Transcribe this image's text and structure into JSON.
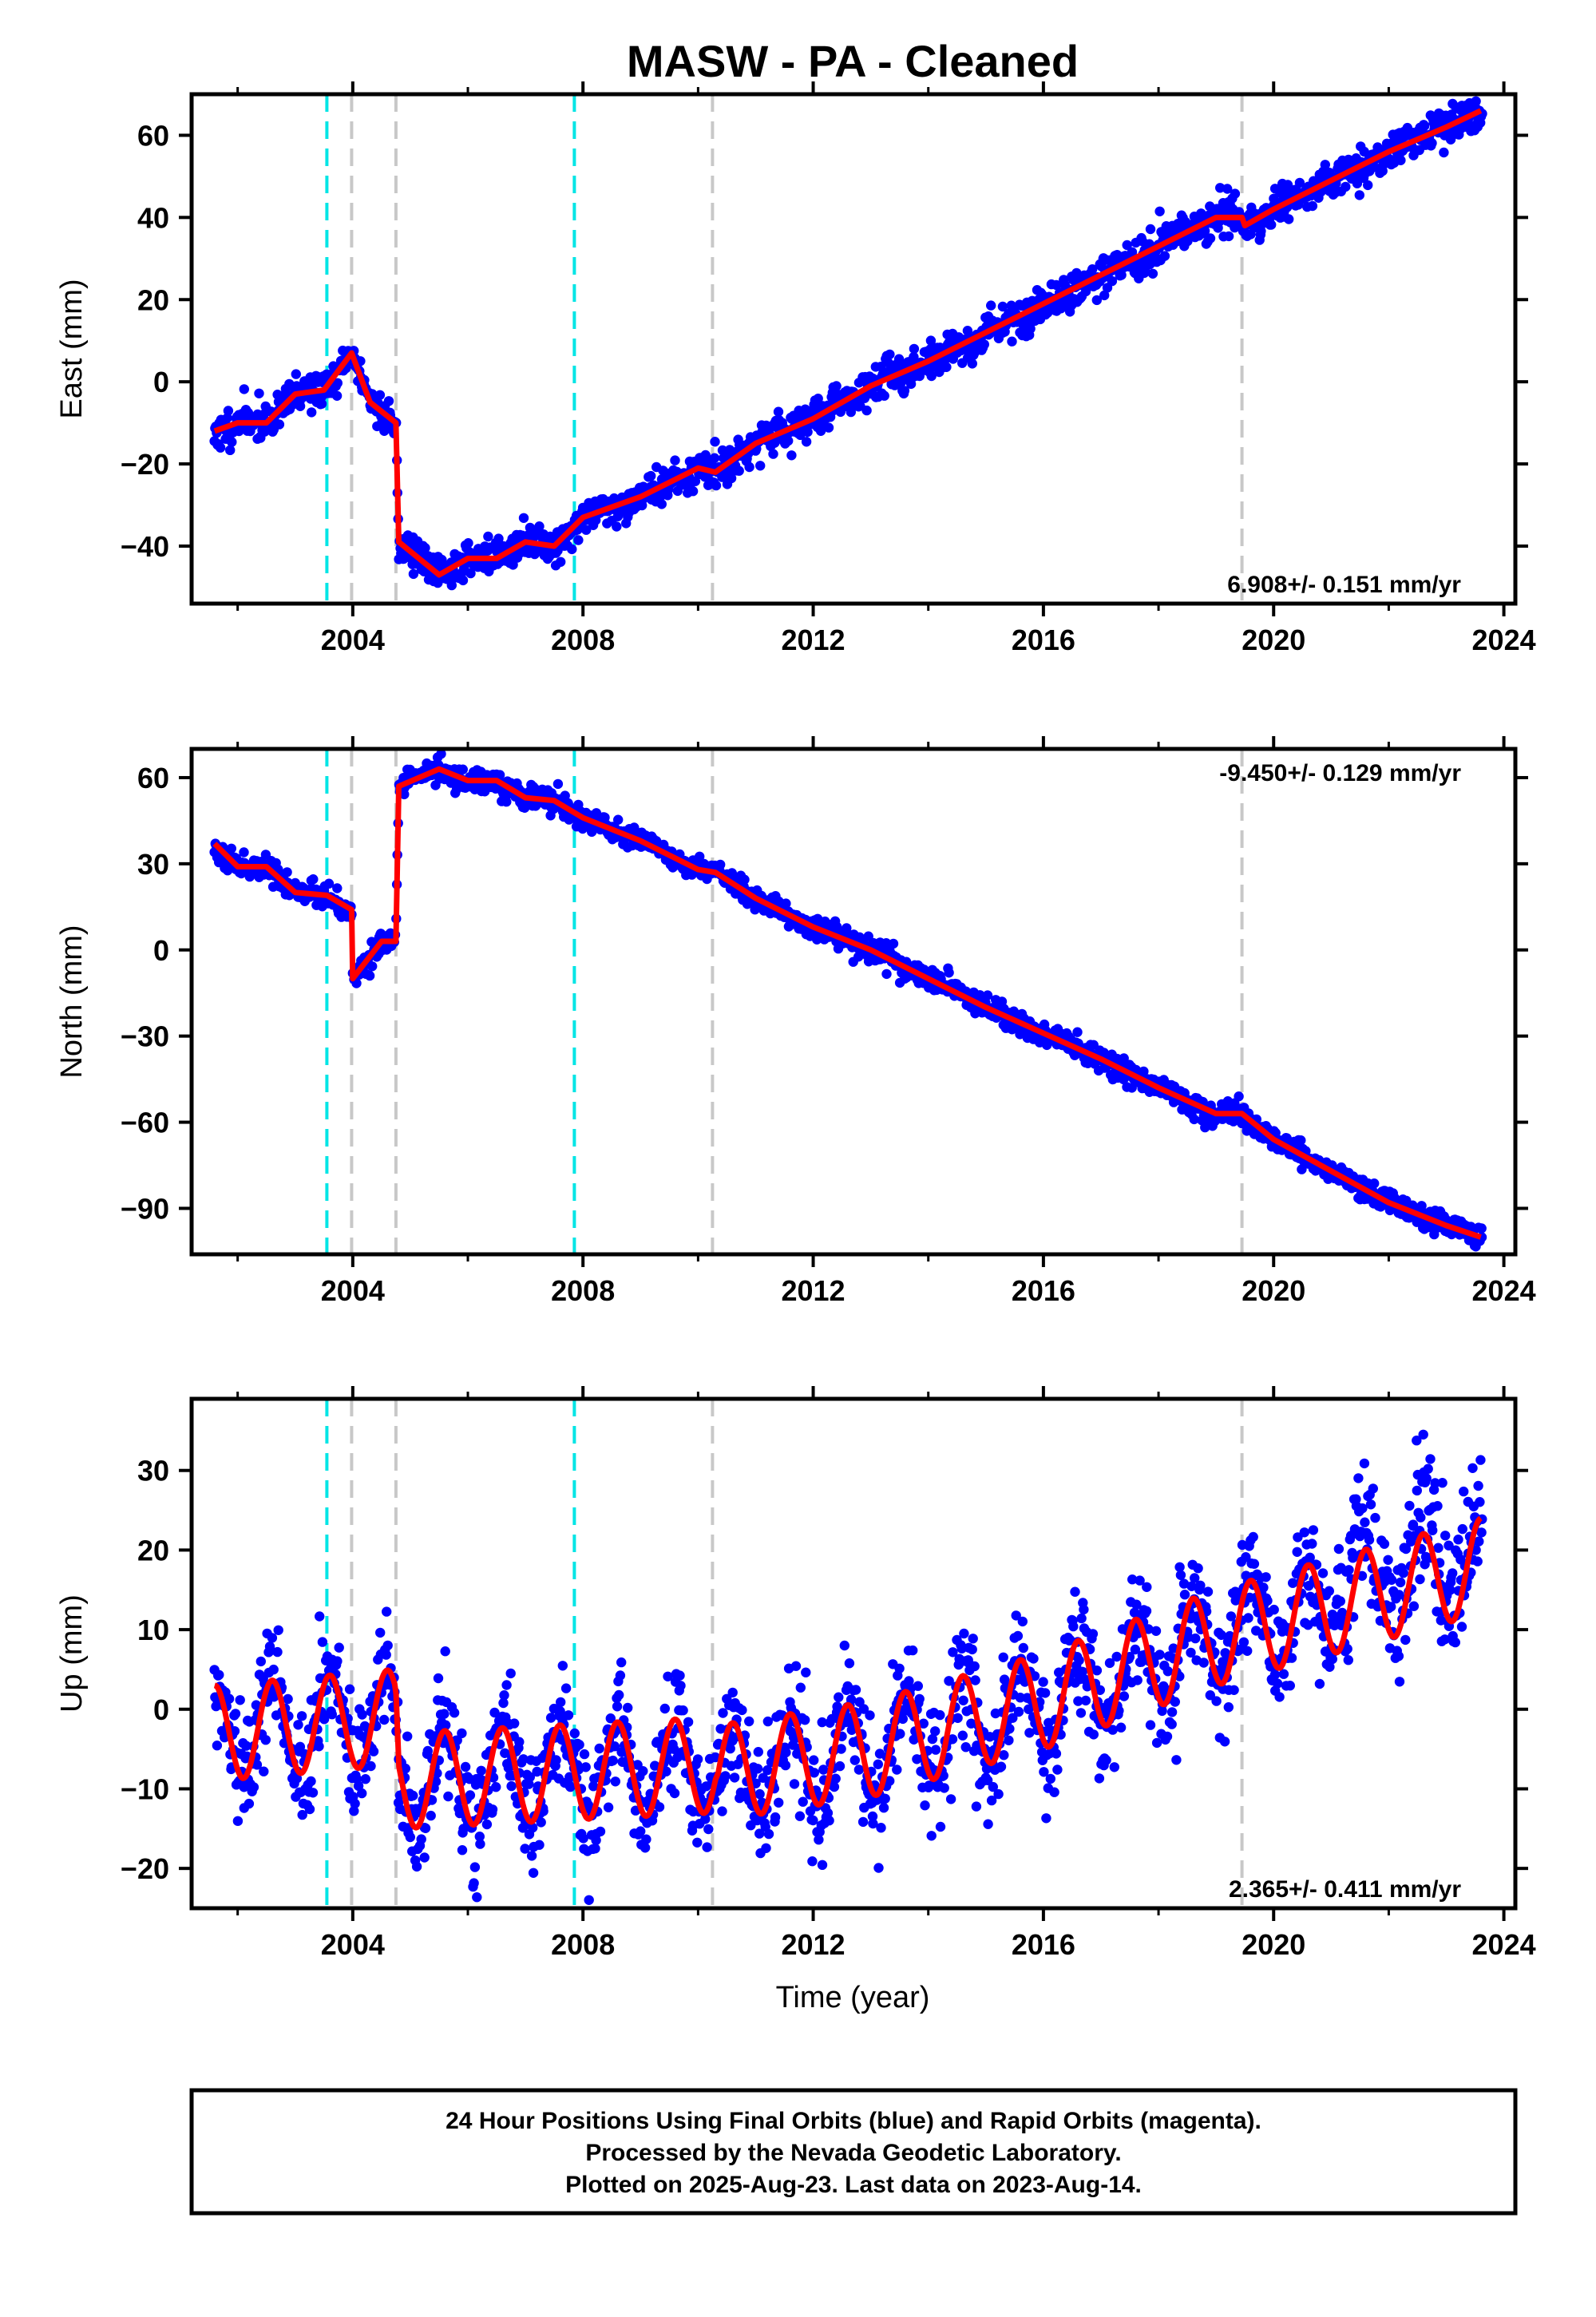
{
  "chart_data": {
    "type": "scatter",
    "title": "MASW  - PA - Cleaned",
    "xlabel": "Time (year)",
    "xlim": [
      2001.2,
      2024.2
    ],
    "x_ticks": [
      2004,
      2008,
      2012,
      2016,
      2020,
      2024
    ],
    "x_tick_labels": [
      "2004",
      "2008",
      "2012",
      "2016",
      "2020",
      "2024"
    ],
    "colors": {
      "points": "#0000ff",
      "model": "#ff0000",
      "vline_cyan": "#00e5e5",
      "vline_gray": "#c8c8c8"
    },
    "vlines_cyan": [
      2003.55,
      2007.85
    ],
    "vlines_gray": [
      2003.98,
      2004.75,
      2010.25,
      2019.45
    ],
    "panels": [
      {
        "name": "East",
        "ylabel": "East (mm)",
        "ylim": [
          -54,
          70
        ],
        "y_ticks": [
          -40,
          -20,
          0,
          20,
          40,
          60
        ],
        "y_tick_labels": [
          "−40",
          "−20",
          "0",
          "20",
          "40",
          "60"
        ],
        "rate_text": "6.908+/- 0.151 mm/yr",
        "rate_position": "bottom-right",
        "model": [
          [
            2001.6,
            -12
          ],
          [
            2002.0,
            -10
          ],
          [
            2002.5,
            -10
          ],
          [
            2003.0,
            -3
          ],
          [
            2003.5,
            -2
          ],
          [
            2003.98,
            7
          ],
          [
            2004.3,
            -5
          ],
          [
            2004.75,
            -10
          ],
          [
            2004.8,
            -39
          ],
          [
            2005.5,
            -47
          ],
          [
            2006.0,
            -43
          ],
          [
            2006.5,
            -43
          ],
          [
            2007.0,
            -39
          ],
          [
            2007.5,
            -40
          ],
          [
            2008.0,
            -33
          ],
          [
            2009.0,
            -28
          ],
          [
            2010.0,
            -21
          ],
          [
            2010.3,
            -22
          ],
          [
            2011.0,
            -15
          ],
          [
            2012.0,
            -9
          ],
          [
            2013.0,
            -1
          ],
          [
            2014.0,
            5
          ],
          [
            2015.0,
            12
          ],
          [
            2016.0,
            19
          ],
          [
            2017.0,
            26
          ],
          [
            2018.0,
            33
          ],
          [
            2019.0,
            40
          ],
          [
            2019.45,
            40
          ],
          [
            2019.5,
            38
          ],
          [
            2020.0,
            42
          ],
          [
            2021.0,
            49
          ],
          [
            2022.0,
            56
          ],
          [
            2023.0,
            62
          ],
          [
            2023.6,
            66
          ]
        ],
        "points_seed": 11,
        "points_noise": 2.2,
        "points_seasonal": 1.5
      },
      {
        "name": "North",
        "ylabel": "North (mm)",
        "ylim": [
          -106,
          70
        ],
        "y_ticks": [
          -90,
          -60,
          -30,
          0,
          30,
          60
        ],
        "y_tick_labels": [
          "−90",
          "−60",
          "−30",
          "0",
          "30",
          "60"
        ],
        "rate_text": "-9.450+/- 0.129 mm/yr",
        "rate_position": "top-right",
        "model": [
          [
            2001.6,
            37
          ],
          [
            2002.0,
            29
          ],
          [
            2002.5,
            29
          ],
          [
            2003.0,
            20
          ],
          [
            2003.55,
            19
          ],
          [
            2003.98,
            14
          ],
          [
            2004.0,
            -10
          ],
          [
            2004.5,
            3
          ],
          [
            2004.75,
            3
          ],
          [
            2004.8,
            57
          ],
          [
            2005.5,
            63
          ],
          [
            2006.0,
            59
          ],
          [
            2006.5,
            59
          ],
          [
            2007.0,
            53
          ],
          [
            2007.5,
            52
          ],
          [
            2008.0,
            46
          ],
          [
            2009.0,
            38
          ],
          [
            2010.0,
            28
          ],
          [
            2010.3,
            27
          ],
          [
            2011.0,
            18
          ],
          [
            2012.0,
            8
          ],
          [
            2013.0,
            0
          ],
          [
            2014.0,
            -10
          ],
          [
            2015.0,
            -20
          ],
          [
            2016.0,
            -29
          ],
          [
            2017.0,
            -38
          ],
          [
            2018.0,
            -48
          ],
          [
            2019.0,
            -57
          ],
          [
            2019.45,
            -57
          ],
          [
            2020.0,
            -66
          ],
          [
            2021.0,
            -77
          ],
          [
            2022.0,
            -88
          ],
          [
            2023.0,
            -96
          ],
          [
            2023.6,
            -100
          ]
        ],
        "points_seed": 23,
        "points_noise": 2.0,
        "points_seasonal": 1.6
      },
      {
        "name": "Up",
        "ylabel": "Up (mm)",
        "ylim": [
          -25,
          39
        ],
        "y_ticks": [
          -20,
          -10,
          0,
          10,
          20,
          30
        ],
        "y_tick_labels": [
          "−20",
          "−10",
          "0",
          "10",
          "20",
          "30"
        ],
        "rate_text": "2.365+/- 0.411 mm/yr",
        "rate_position": "bottom-right",
        "model_type": "seasonal",
        "model_amplitude": 6,
        "model_trend": [
          [
            2001.6,
            -3
          ],
          [
            2004.75,
            -1
          ],
          [
            2004.8,
            -9
          ],
          [
            2010.3,
            -7
          ],
          [
            2010.35,
            -8
          ],
          [
            2013.0,
            -5
          ],
          [
            2016.0,
            1
          ],
          [
            2019.0,
            9
          ],
          [
            2023.6,
            18
          ]
        ],
        "points_seed": 37,
        "points_noise": 3.6,
        "points_seasonal": 6
      }
    ],
    "footer": [
      "24 Hour Positions Using Final Orbits (blue) and Rapid Orbits (magenta).",
      "Processed by the Nevada Geodetic Laboratory.",
      "Plotted on 2025-Aug-23. Last data on 2023-Aug-14."
    ]
  }
}
